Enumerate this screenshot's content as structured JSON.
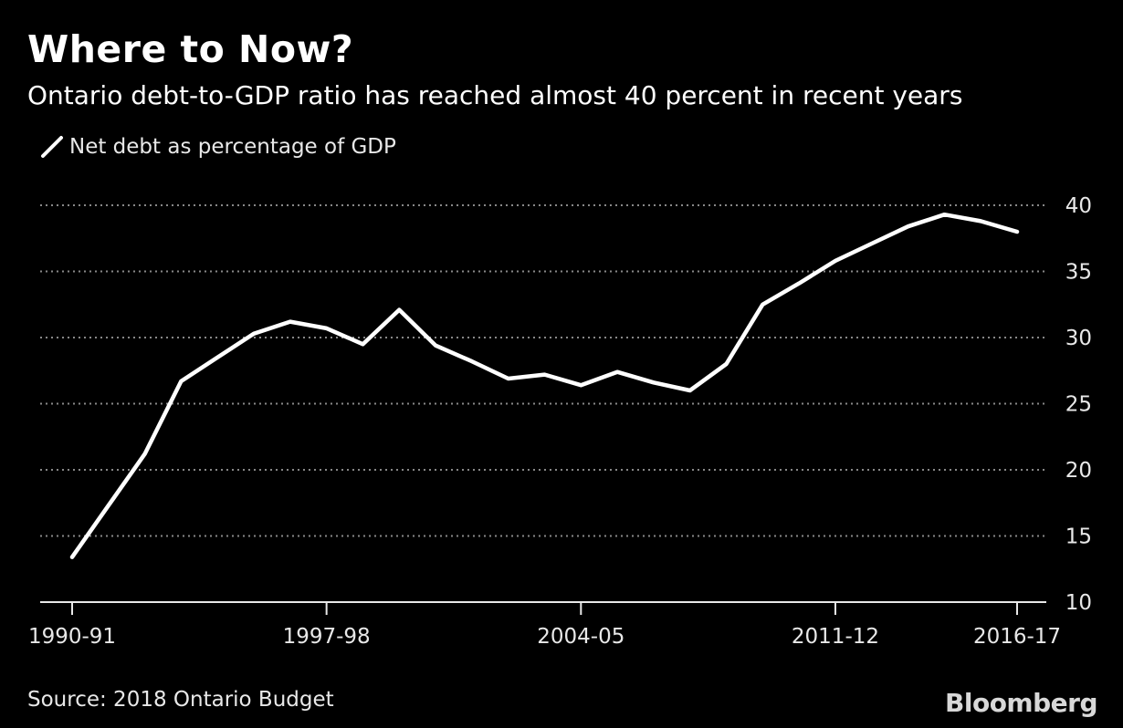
{
  "header": {
    "title": "Where to Now?",
    "subtitle": "Ontario debt-to-GDP ratio has reached almost 40 percent in recent years"
  },
  "legend": {
    "label": "Net debt as percentage of GDP"
  },
  "footer": {
    "source": "Source: 2018 Ontario Budget",
    "brand": "Bloomberg"
  },
  "colors": {
    "background": "#000000",
    "line": "#ffffff",
    "grid": "#888888",
    "text": "#e8e8e8"
  },
  "chart_data": {
    "type": "line",
    "title": "Where to Now?",
    "subtitle": "Ontario debt-to-GDP ratio has reached almost 40 percent in recent years",
    "xlabel": "",
    "ylabel": "",
    "x": [
      "1990-91",
      "1991-92",
      "1992-93",
      "1993-94",
      "1994-95",
      "1995-96",
      "1996-97",
      "1997-98",
      "1998-99",
      "1999-00",
      "2000-01",
      "2001-02",
      "2002-03",
      "2003-04",
      "2004-05",
      "2005-06",
      "2006-07",
      "2007-08",
      "2008-09",
      "2009-10",
      "2010-11",
      "2011-12",
      "2012-13",
      "2013-14",
      "2014-15",
      "2015-16",
      "2016-17"
    ],
    "series": [
      {
        "name": "Net debt as percentage of GDP",
        "values": [
          13.4,
          17.3,
          21.2,
          26.7,
          28.5,
          30.3,
          31.2,
          30.7,
          29.5,
          32.1,
          29.4,
          28.2,
          26.9,
          27.2,
          26.4,
          27.4,
          26.6,
          26.0,
          28.0,
          32.5,
          34.1,
          35.8,
          37.1,
          38.4,
          39.3,
          38.8,
          38.0
        ]
      }
    ],
    "x_tick_labels": [
      "1990-91",
      "1997-98",
      "2004-05",
      "2011-12",
      "2016-17"
    ],
    "x_tick_indices": [
      0,
      7,
      14,
      21,
      26
    ],
    "y_ticks": [
      10,
      15,
      20,
      25,
      30,
      35,
      40
    ],
    "ylim": [
      10,
      40
    ],
    "y_axis_side": "right",
    "grid": true,
    "legend_position": "top-left"
  }
}
